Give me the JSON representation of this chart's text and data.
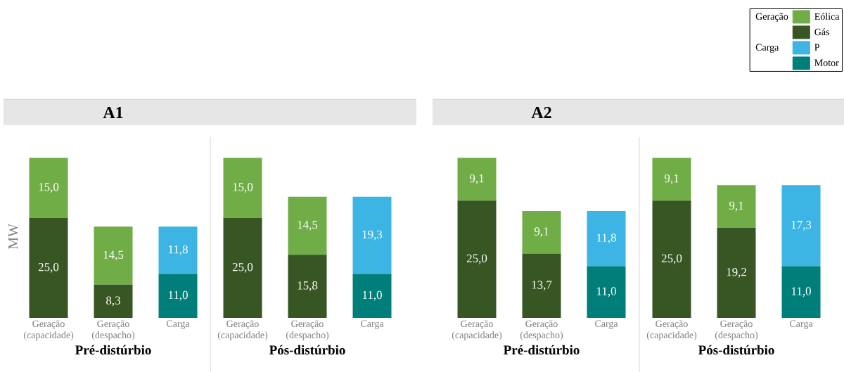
{
  "chart_data": [
    {
      "type": "bar",
      "stacked": true,
      "title": "A1",
      "xlabel": "Pré-distúrbio",
      "ylabel": "MW",
      "categories": [
        "Geração (capacidade)",
        "Geração (despacho)",
        "Carga"
      ],
      "series": [
        {
          "color": "#375623",
          "values": [
            25.0,
            8.3,
            null
          ],
          "value_labels": [
            "25,0",
            "8,3",
            null
          ]
        },
        {
          "color": "#70ad47",
          "values": [
            15.0,
            14.5,
            null
          ],
          "value_labels": [
            "15,0",
            "14,5",
            null
          ]
        },
        {
          "color": "#007f7a",
          "values": [
            null,
            null,
            11.0
          ],
          "value_labels": [
            null,
            null,
            "11,0"
          ]
        },
        {
          "color": "#3cb4e4",
          "values": [
            null,
            null,
            11.8
          ],
          "value_labels": [
            null,
            null,
            "11,8"
          ]
        }
      ]
    },
    {
      "type": "bar",
      "stacked": true,
      "xlabel": "Pós-distúrbio",
      "categories": [
        "Geração (capacidade)",
        "Geração (despacho)",
        "Carga"
      ],
      "series": [
        {
          "color": "#375623",
          "values": [
            25.0,
            15.8,
            null
          ],
          "value_labels": [
            "25,0",
            "15,8",
            null
          ]
        },
        {
          "color": "#70ad47",
          "values": [
            15.0,
            14.5,
            null
          ],
          "value_labels": [
            "15,0",
            "14,5",
            null
          ]
        },
        {
          "color": "#007f7a",
          "values": [
            null,
            null,
            11.0
          ],
          "value_labels": [
            null,
            null,
            "11,0"
          ]
        },
        {
          "color": "#3cb4e4",
          "values": [
            null,
            null,
            19.3
          ],
          "value_labels": [
            null,
            null,
            "19,3"
          ]
        }
      ]
    },
    {
      "type": "bar",
      "stacked": true,
      "title": "A2",
      "xlabel": "Pré-distúrbio",
      "categories": [
        "Geração (capacidade)",
        "Geração (despacho)",
        "Carga"
      ],
      "series": [
        {
          "color": "#375623",
          "values": [
            25.0,
            13.7,
            null
          ],
          "value_labels": [
            "25,0",
            "13,7",
            null
          ]
        },
        {
          "color": "#70ad47",
          "values": [
            9.1,
            9.1,
            null
          ],
          "value_labels": [
            "9,1",
            "9,1",
            null
          ]
        },
        {
          "color": "#007f7a",
          "values": [
            null,
            null,
            11.0
          ],
          "value_labels": [
            null,
            null,
            "11,0"
          ]
        },
        {
          "color": "#3cb4e4",
          "values": [
            null,
            null,
            11.8
          ],
          "value_labels": [
            null,
            null,
            "11,8"
          ]
        }
      ]
    },
    {
      "type": "bar",
      "stacked": true,
      "xlabel": "Pós-distúrbio",
      "legend": "top right",
      "annotations": [
        "Geração",
        "Carga"
      ],
      "categories": [
        "Geração (capacidade)",
        "Geração (despacho)",
        "Carga"
      ],
      "series": [
        {
          "name": "Gás",
          "color": "#375623",
          "values": [
            25.0,
            19.2,
            null
          ],
          "value_labels": [
            "25,0",
            "19,2",
            null
          ]
        },
        {
          "name": "Eólica",
          "color": "#70ad47",
          "values": [
            9.1,
            9.1,
            null
          ],
          "value_labels": [
            "9,1",
            "9,1",
            null
          ]
        },
        {
          "name": "Motor",
          "color": "#007f7a",
          "values": [
            null,
            null,
            11.0
          ],
          "value_labels": [
            null,
            null,
            "11,0"
          ]
        },
        {
          "name": "P",
          "color": "#3cb4e4",
          "values": [
            null,
            null,
            17.3
          ],
          "value_labels": [
            null,
            null,
            "17,3"
          ]
        }
      ]
    }
  ]
}
